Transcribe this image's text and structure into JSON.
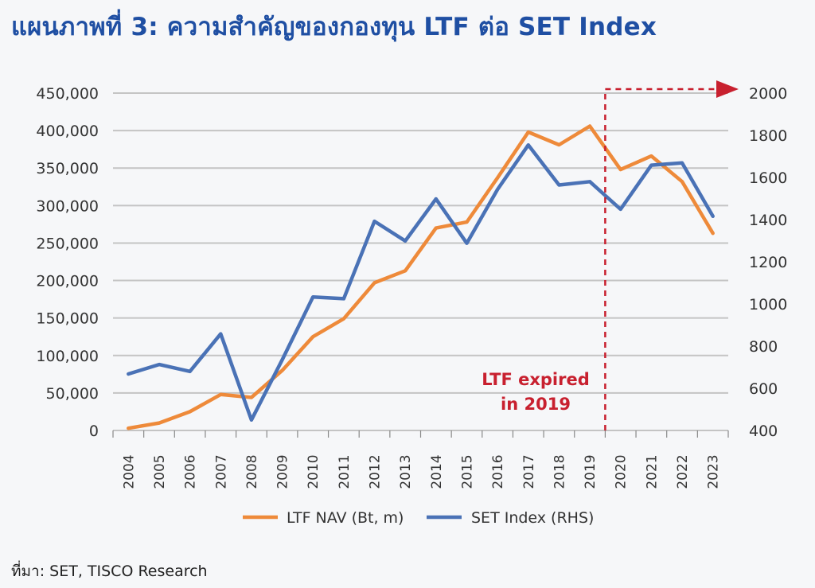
{
  "title": "แผนภาพที่ 3: ความสำคัญของกองทุน LTF ต่อ SET Index",
  "source": "ที่มา: SET, TISCO Research",
  "colors": {
    "title": "#1f4fa3",
    "ltf_nav": "#ee8a3a",
    "set_index": "#4a72b6",
    "annotation": "#c8202f",
    "grid": "#c4c4c4"
  },
  "chart_data": {
    "type": "line",
    "title": "แผนภาพที่ 3: ความสำคัญของกองทุน LTF ต่อ SET Index",
    "categories": [
      "2004",
      "2005",
      "2006",
      "2007",
      "2008",
      "2009",
      "2010",
      "2011",
      "2012",
      "2013",
      "2014",
      "2015",
      "2016",
      "2017",
      "2018",
      "2019",
      "2020",
      "2021",
      "2022",
      "2023"
    ],
    "series": [
      {
        "name": "LTF NAV (Bt, m)",
        "axis": "left",
        "color": "#ee8a3a",
        "values": [
          3000,
          10000,
          25000,
          48000,
          44000,
          80000,
          125000,
          149000,
          197000,
          213000,
          270000,
          278000,
          337000,
          398000,
          381000,
          406000,
          348000,
          366000,
          332000,
          263000
        ]
      },
      {
        "name": "SET Index (RHS)",
        "axis": "right",
        "color": "#4a72b6",
        "values": [
          668,
          713,
          680,
          858,
          450,
          735,
          1033,
          1025,
          1392,
          1299,
          1498,
          1288,
          1543,
          1754,
          1564,
          1580,
          1449,
          1658,
          1669,
          1416
        ]
      }
    ],
    "y_left": {
      "min": 0,
      "max": 450000,
      "ticks": [
        0,
        50000,
        100000,
        150000,
        200000,
        250000,
        300000,
        350000,
        400000,
        450000
      ],
      "tick_labels": [
        "0",
        "50,000",
        "100,000",
        "150,000",
        "200,000",
        "250,000",
        "300,000",
        "350,000",
        "400,000",
        "450,000"
      ]
    },
    "y_right": {
      "min": 400,
      "max": 2000,
      "ticks": [
        400,
        600,
        800,
        1000,
        1200,
        1400,
        1600,
        1800,
        2000
      ],
      "tick_labels": [
        "400",
        "600",
        "800",
        "1000",
        "1200",
        "1400",
        "1600",
        "1800",
        "2000"
      ]
    },
    "grid": true,
    "legend_position": "bottom-center",
    "annotation": {
      "lines": [
        "LTF expired",
        "in 2019"
      ],
      "marker_between": [
        "2019",
        "2020"
      ]
    }
  }
}
